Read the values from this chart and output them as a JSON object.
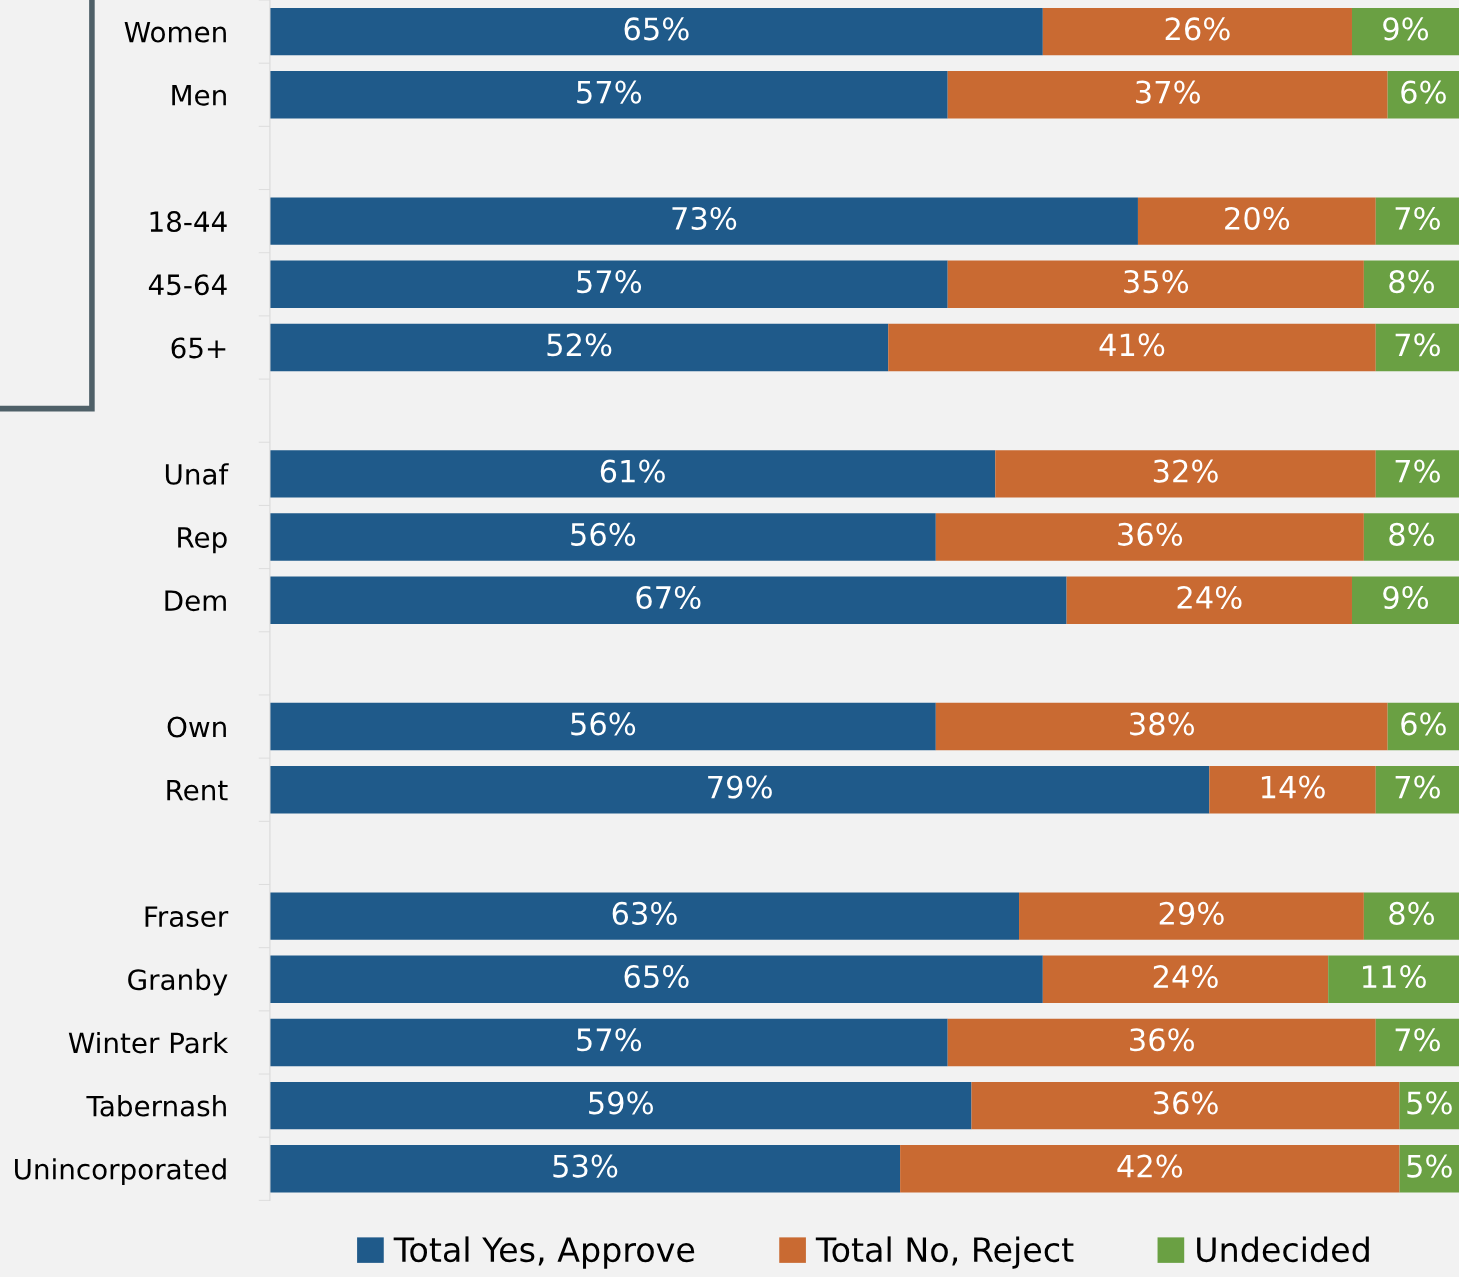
{
  "chart_data": {
    "type": "bar",
    "orientation": "horizontal",
    "stacked": true,
    "legend": "bottom",
    "grid": false,
    "categories": [
      "Women",
      "Men",
      null,
      "18-44",
      "45-64",
      "65+",
      null,
      "Unaf",
      "Rep",
      "Dem",
      null,
      "Own",
      "Rent",
      null,
      "Fraser",
      "Granby",
      "Winter Park",
      "Tabernash",
      "Unincorporated"
    ],
    "series": [
      {
        "name": "Total Yes, Approve",
        "color": "#1f5a8a",
        "values": [
          65,
          57,
          null,
          73,
          57,
          52,
          null,
          61,
          56,
          67,
          null,
          56,
          79,
          null,
          63,
          65,
          57,
          59,
          53
        ],
        "value_labels": [
          "65%",
          "57%",
          null,
          "73%",
          "57%",
          "52%",
          null,
          "61%",
          "56%",
          "67%",
          null,
          "56%",
          "79%",
          null,
          "63%",
          "65%",
          "57%",
          "59%",
          "53%"
        ]
      },
      {
        "name": "Total No, Reject",
        "color": "#c96a32",
        "values": [
          26,
          37,
          null,
          20,
          35,
          41,
          null,
          32,
          36,
          24,
          null,
          38,
          14,
          null,
          29,
          24,
          36,
          36,
          42
        ],
        "value_labels": [
          "26%",
          "37%",
          null,
          "20%",
          "35%",
          "41%",
          null,
          "32%",
          "36%",
          "24%",
          null,
          "38%",
          "14%",
          null,
          "29%",
          "24%",
          "36%",
          "36%",
          "42%"
        ]
      },
      {
        "name": "Undecided",
        "color": "#6aa043",
        "values": [
          9,
          6,
          null,
          7,
          8,
          7,
          null,
          7,
          8,
          9,
          null,
          6,
          7,
          null,
          8,
          11,
          7,
          5,
          5
        ],
        "value_labels": [
          "9%",
          "6%",
          null,
          "7%",
          "8%",
          "7%",
          null,
          "7%",
          "8%",
          "9%",
          null,
          "6%",
          "7%",
          null,
          "8%",
          "11%",
          "7%",
          "5%",
          "5%"
        ]
      }
    ]
  }
}
